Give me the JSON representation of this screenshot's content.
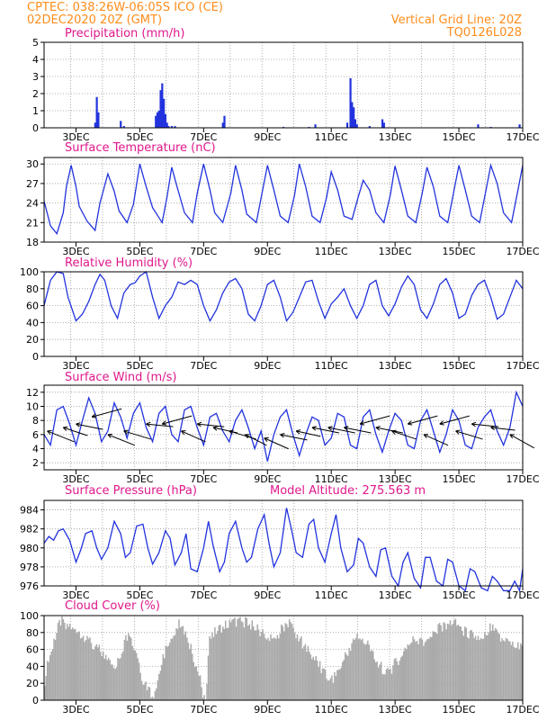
{
  "header": {
    "line1_left": "CPTEC:  038:26W-06:05S  ICO (CE)",
    "line2_left": "02DEC2020 20Z (GMT)",
    "line1_right": "Vertical Grid Line: 20Z",
    "line2_right": "TQ0126L028"
  },
  "colors": {
    "header": "#ff8c1a",
    "title": "#e0188c",
    "series": "#2233dd",
    "cloud": "#aaaaaa",
    "grid": "#9a9a9a"
  },
  "x_tick_labels": [
    "3DEC",
    "5DEC",
    "7DEC",
    "9DEC",
    "11DEC",
    "13DEC",
    "15DEC",
    "17DEC"
  ],
  "chart_data": [
    {
      "type": "bar",
      "title": "Precipitation (mm/h)",
      "ylim": [
        0,
        5
      ],
      "yticks": [
        0,
        1,
        2,
        3,
        4,
        5
      ],
      "xlim_days": [
        2.0,
        17.0
      ],
      "grid": true,
      "series": [
        {
          "x_days": [
            3.6,
            3.65,
            3.7,
            4.4,
            4.5,
            5.5,
            5.55,
            5.6,
            5.65,
            5.7,
            5.75,
            5.8,
            5.85,
            5.9,
            6.0,
            6.1,
            7.6,
            7.65,
            9.5,
            10.3,
            10.5,
            11.5,
            11.6,
            11.65,
            11.7,
            11.75,
            11.8,
            12.2,
            12.6,
            12.65,
            15.6,
            16.0,
            16.9
          ],
          "values": [
            0.3,
            1.8,
            0.9,
            0.4,
            0.1,
            0.7,
            0.9,
            1.0,
            2.2,
            2.6,
            1.7,
            0.8,
            0.3,
            0.1,
            0.1,
            0.1,
            0.3,
            0.7,
            0.05,
            0.05,
            0.2,
            0.3,
            2.9,
            1.5,
            1.2,
            0.5,
            0.2,
            0.1,
            0.5,
            0.3,
            0.2,
            0.05,
            0.2
          ]
        }
      ]
    },
    {
      "type": "line",
      "title": "Surface Temperature (nC)",
      "ylim": [
        18,
        31
      ],
      "yticks": [
        18,
        21,
        24,
        27,
        30
      ],
      "grid": true,
      "series": [
        {
          "x_days": [
            2.0,
            2.2,
            2.4,
            2.6,
            2.7,
            2.85,
            3.0,
            3.1,
            3.35,
            3.6,
            3.75,
            4.0,
            4.2,
            4.35,
            4.6,
            4.8,
            5.0,
            5.2,
            5.4,
            5.7,
            5.85,
            6.0,
            6.15,
            6.4,
            6.65,
            6.8,
            7.0,
            7.2,
            7.35,
            7.6,
            7.85,
            8.0,
            8.2,
            8.35,
            8.65,
            8.85,
            9.0,
            9.2,
            9.4,
            9.65,
            9.85,
            10.0,
            10.2,
            10.4,
            10.65,
            10.85,
            11.0,
            11.2,
            11.4,
            11.65,
            11.85,
            12.0,
            12.2,
            12.4,
            12.65,
            12.85,
            13.0,
            13.2,
            13.4,
            13.65,
            13.85,
            14.0,
            14.2,
            14.4,
            14.65,
            14.85,
            15.0,
            15.2,
            15.4,
            15.65,
            15.85,
            16.0,
            16.2,
            16.4,
            16.65,
            16.85,
            17.0
          ],
          "values": [
            24.3,
            20.5,
            19.3,
            22.5,
            26.5,
            29.8,
            26.5,
            23.5,
            21.2,
            19.8,
            24.0,
            28.5,
            25.8,
            22.8,
            21.0,
            23.8,
            30.0,
            26.5,
            23.3,
            21.0,
            24.8,
            29.5,
            26.8,
            22.5,
            21.0,
            25.5,
            30.0,
            26.0,
            22.5,
            21.0,
            25.5,
            29.8,
            26.0,
            22.3,
            21.0,
            26.0,
            29.8,
            26.0,
            22.0,
            21.0,
            25.2,
            30.0,
            26.5,
            22.0,
            21.0,
            24.8,
            28.8,
            26.0,
            22.0,
            21.5,
            25.0,
            27.5,
            26.0,
            22.5,
            21.0,
            25.2,
            29.7,
            26.0,
            22.0,
            21.0,
            25.5,
            29.5,
            26.5,
            22.0,
            21.0,
            26.0,
            29.8,
            26.0,
            22.0,
            21.0,
            26.0,
            29.8,
            27.0,
            22.5,
            21.0,
            26.0,
            29.8
          ]
        }
      ]
    },
    {
      "type": "line",
      "title": "Relative Humidity (%)",
      "ylim": [
        0,
        100
      ],
      "yticks": [
        0,
        20,
        40,
        60,
        80,
        100
      ],
      "grid": true,
      "series": [
        {
          "x_days": [
            2.0,
            2.2,
            2.4,
            2.6,
            2.75,
            3.0,
            3.2,
            3.4,
            3.6,
            3.75,
            3.9,
            4.1,
            4.3,
            4.5,
            4.7,
            4.85,
            5.0,
            5.2,
            5.4,
            5.6,
            5.8,
            6.0,
            6.2,
            6.4,
            6.6,
            6.8,
            7.0,
            7.2,
            7.4,
            7.6,
            7.8,
            8.0,
            8.2,
            8.4,
            8.6,
            8.8,
            9.0,
            9.2,
            9.4,
            9.6,
            9.8,
            10.0,
            10.2,
            10.4,
            10.6,
            10.8,
            11.0,
            11.2,
            11.4,
            11.6,
            11.8,
            12.0,
            12.2,
            12.4,
            12.6,
            12.8,
            13.0,
            13.2,
            13.4,
            13.6,
            13.8,
            14.0,
            14.2,
            14.4,
            14.6,
            14.8,
            15.0,
            15.2,
            15.4,
            15.6,
            15.8,
            16.0,
            16.2,
            16.4,
            16.6,
            16.8,
            17.0
          ],
          "values": [
            60,
            90,
            100,
            98,
            70,
            42,
            50,
            65,
            85,
            97,
            90,
            60,
            45,
            75,
            85,
            87,
            95,
            100,
            70,
            45,
            60,
            70,
            88,
            85,
            90,
            85,
            60,
            42,
            55,
            75,
            88,
            92,
            80,
            50,
            42,
            60,
            85,
            90,
            70,
            42,
            52,
            70,
            88,
            90,
            65,
            45,
            62,
            70,
            80,
            60,
            45,
            60,
            85,
            90,
            60,
            48,
            62,
            82,
            95,
            85,
            55,
            45,
            62,
            85,
            92,
            75,
            45,
            50,
            72,
            85,
            90,
            70,
            44,
            50,
            70,
            90,
            80
          ]
        }
      ]
    },
    {
      "type": "line",
      "title": "Surface Wind (m/s)",
      "ylim": [
        1,
        13
      ],
      "yticks": [
        2,
        4,
        6,
        8,
        10,
        12
      ],
      "grid": true,
      "series": [
        {
          "x_days": [
            2.0,
            2.2,
            2.4,
            2.6,
            2.8,
            3.0,
            3.2,
            3.4,
            3.6,
            3.8,
            4.0,
            4.2,
            4.4,
            4.6,
            4.8,
            5.0,
            5.2,
            5.4,
            5.6,
            5.8,
            6.0,
            6.2,
            6.4,
            6.6,
            6.8,
            7.0,
            7.2,
            7.4,
            7.6,
            7.8,
            8.0,
            8.2,
            8.4,
            8.6,
            8.8,
            9.0,
            9.2,
            9.4,
            9.6,
            9.8,
            10.0,
            10.2,
            10.4,
            10.6,
            10.8,
            11.0,
            11.2,
            11.4,
            11.6,
            11.8,
            12.0,
            12.2,
            12.4,
            12.6,
            12.8,
            13.0,
            13.2,
            13.4,
            13.6,
            13.8,
            14.0,
            14.2,
            14.4,
            14.6,
            14.8,
            15.0,
            15.2,
            15.4,
            15.6,
            15.8,
            16.0,
            16.2,
            16.4,
            16.6,
            16.8,
            17.0
          ],
          "values": [
            6.0,
            4.5,
            9.5,
            10.0,
            7.5,
            4.5,
            8.0,
            11.2,
            9.0,
            5.0,
            6.5,
            10.5,
            8.5,
            5.5,
            9.0,
            10.5,
            7.0,
            5.0,
            9.0,
            10.0,
            6.0,
            5.0,
            9.5,
            10.0,
            7.0,
            4.5,
            8.5,
            9.0,
            6.5,
            5.0,
            8.0,
            9.5,
            7.0,
            4.0,
            6.5,
            2.2,
            6.0,
            8.5,
            9.5,
            6.0,
            3.0,
            6.0,
            8.5,
            8.0,
            4.5,
            5.5,
            9.0,
            8.5,
            4.5,
            4.0,
            8.5,
            9.5,
            6.0,
            3.5,
            6.5,
            9.0,
            8.0,
            4.5,
            4.0,
            8.0,
            9.5,
            6.5,
            3.5,
            6.0,
            9.5,
            8.0,
            4.5,
            4.0,
            7.0,
            8.5,
            9.5,
            6.5,
            4.5,
            7.0,
            12.0,
            10.0
          ]
        }
      ],
      "vectors": [
        {
          "x_day": 2.1,
          "y": 6.5,
          "u": 5.0,
          "v": 2.0
        },
        {
          "x_day": 2.6,
          "y": 7.0,
          "u": 4.5,
          "v": 1.5
        },
        {
          "x_day": 3.0,
          "y": 7.5,
          "u": 5.0,
          "v": 1.0
        },
        {
          "x_day": 3.5,
          "y": 8.5,
          "u": 5.5,
          "v": -1.5
        },
        {
          "x_day": 4.0,
          "y": 6.0,
          "u": 5.0,
          "v": 2.0
        },
        {
          "x_day": 4.5,
          "y": 6.5,
          "u": 5.0,
          "v": 1.5
        },
        {
          "x_day": 5.2,
          "y": 7.5,
          "u": 5.0,
          "v": 0.5
        },
        {
          "x_day": 5.7,
          "y": 7.5,
          "u": 5.5,
          "v": -1.5
        },
        {
          "x_day": 6.3,
          "y": 6.5,
          "u": 4.5,
          "v": 2.0
        },
        {
          "x_day": 6.8,
          "y": 7.5,
          "u": 5.0,
          "v": 0.5
        },
        {
          "x_day": 7.3,
          "y": 7.0,
          "u": 4.5,
          "v": 1.0
        },
        {
          "x_day": 7.8,
          "y": 6.5,
          "u": 5.0,
          "v": 1.5
        },
        {
          "x_day": 8.3,
          "y": 6.0,
          "u": 4.0,
          "v": 2.0
        },
        {
          "x_day": 8.9,
          "y": 5.5,
          "u": 4.5,
          "v": 2.0
        },
        {
          "x_day": 9.4,
          "y": 6.0,
          "u": 5.0,
          "v": 1.0
        },
        {
          "x_day": 9.9,
          "y": 6.5,
          "u": 4.5,
          "v": 1.0
        },
        {
          "x_day": 10.4,
          "y": 7.0,
          "u": 5.0,
          "v": 1.0
        },
        {
          "x_day": 10.9,
          "y": 7.0,
          "u": 5.0,
          "v": 1.0
        },
        {
          "x_day": 11.4,
          "y": 7.0,
          "u": 5.0,
          "v": 1.0
        },
        {
          "x_day": 11.9,
          "y": 7.5,
          "u": 5.5,
          "v": -1.5
        },
        {
          "x_day": 12.4,
          "y": 7.0,
          "u": 5.0,
          "v": 1.0
        },
        {
          "x_day": 12.9,
          "y": 6.5,
          "u": 4.5,
          "v": 1.5
        },
        {
          "x_day": 13.4,
          "y": 7.5,
          "u": 5.5,
          "v": -1.5
        },
        {
          "x_day": 13.9,
          "y": 6.0,
          "u": 4.5,
          "v": 2.0
        },
        {
          "x_day": 14.4,
          "y": 7.5,
          "u": 5.5,
          "v": -1.5
        },
        {
          "x_day": 14.9,
          "y": 6.5,
          "u": 5.0,
          "v": 1.5
        },
        {
          "x_day": 15.4,
          "y": 7.5,
          "u": 5.0,
          "v": 0.5
        },
        {
          "x_day": 16.0,
          "y": 7.0,
          "u": 4.5,
          "v": 0.5
        },
        {
          "x_day": 16.6,
          "y": 6.0,
          "u": 4.5,
          "v": 2.5
        }
      ]
    },
    {
      "type": "line",
      "title": "Surface Pressure (hPa)",
      "annotation": "Model Altitude: 275.563 m",
      "ylim": [
        976,
        985
      ],
      "yticks": [
        976,
        978,
        980,
        982,
        984
      ],
      "grid": true,
      "series": [
        {
          "x_days": [
            2.0,
            2.15,
            2.3,
            2.45,
            2.6,
            2.8,
            3.0,
            3.15,
            3.3,
            3.5,
            3.65,
            3.8,
            4.0,
            4.2,
            4.4,
            4.55,
            4.7,
            4.9,
            5.1,
            5.25,
            5.4,
            5.6,
            5.8,
            5.95,
            6.1,
            6.3,
            6.45,
            6.6,
            6.8,
            7.0,
            7.15,
            7.3,
            7.5,
            7.65,
            7.8,
            8.0,
            8.2,
            8.35,
            8.5,
            8.7,
            8.9,
            9.05,
            9.2,
            9.4,
            9.6,
            9.75,
            9.9,
            10.1,
            10.3,
            10.45,
            10.6,
            10.8,
            11.0,
            11.15,
            11.3,
            11.5,
            11.7,
            11.85,
            12.0,
            12.2,
            12.4,
            12.55,
            12.7,
            12.9,
            13.1,
            13.25,
            13.4,
            13.6,
            13.8,
            13.95,
            14.1,
            14.3,
            14.5,
            14.65,
            14.8,
            15.0,
            15.2,
            15.35,
            15.5,
            15.7,
            15.9,
            16.05,
            16.2,
            16.4,
            16.6,
            16.75,
            16.9,
            17.0
          ],
          "values": [
            980.5,
            981.2,
            980.8,
            981.8,
            982.0,
            980.8,
            978.5,
            979.8,
            981.5,
            981.8,
            980.0,
            978.8,
            980.0,
            982.8,
            981.5,
            979.0,
            979.5,
            982.3,
            982.5,
            980.0,
            978.3,
            979.5,
            981.8,
            981.0,
            978.2,
            979.5,
            981.5,
            977.8,
            977.5,
            980.0,
            982.8,
            980.2,
            977.5,
            978.5,
            981.5,
            982.8,
            980.0,
            978.5,
            979.0,
            982.0,
            983.5,
            980.5,
            978.0,
            979.5,
            984.2,
            982.0,
            979.5,
            979.0,
            982.5,
            983.0,
            980.0,
            978.5,
            981.5,
            983.5,
            980.0,
            977.5,
            978.2,
            981.0,
            980.5,
            978.0,
            977.0,
            979.8,
            980.0,
            977.0,
            976.0,
            978.5,
            979.5,
            976.8,
            975.8,
            979.0,
            979.0,
            976.5,
            976.0,
            978.8,
            978.5,
            976.0,
            975.5,
            977.8,
            977.5,
            975.8,
            975.5,
            977.0,
            976.5,
            975.5,
            975.5,
            976.5,
            975.5,
            977.8
          ]
        }
      ]
    },
    {
      "type": "bar",
      "title": "Cloud Cover (%)",
      "ylim": [
        0,
        100
      ],
      "yticks": [
        0,
        20,
        40,
        60,
        80,
        100
      ],
      "grid": true,
      "profile": {
        "x_days": [
          2.0,
          2.05,
          2.5,
          3.0,
          3.5,
          3.9,
          4.2,
          4.6,
          4.9,
          5.1,
          5.4,
          5.8,
          6.0,
          6.3,
          6.6,
          6.9,
          7.05,
          7.2,
          7.6,
          8.0,
          8.4,
          8.8,
          9.2,
          9.6,
          10.0,
          10.4,
          10.8,
          11.0,
          11.4,
          11.8,
          12.2,
          12.4,
          12.8,
          13.2,
          13.6,
          14.0,
          14.4,
          14.8,
          15.2,
          15.6,
          16.0,
          16.4,
          16.8,
          17.0
        ],
        "values": [
          0,
          40,
          100,
          92,
          75,
          60,
          40,
          82,
          65,
          30,
          10,
          65,
          85,
          100,
          70,
          30,
          5,
          82,
          95,
          100,
          98,
          88,
          75,
          100,
          80,
          60,
          40,
          28,
          55,
          85,
          70,
          50,
          40,
          60,
          80,
          75,
          92,
          100,
          88,
          80,
          92,
          78,
          70,
          70
        ]
      }
    }
  ]
}
